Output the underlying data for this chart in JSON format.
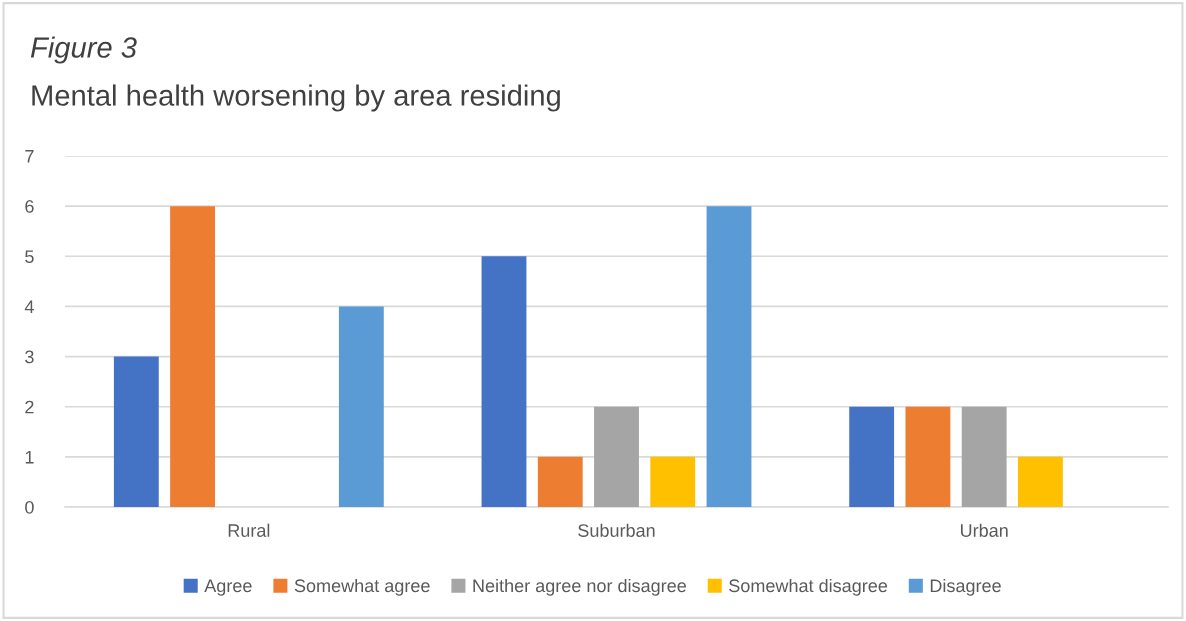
{
  "chart_data": {
    "type": "bar",
    "title": "Figure 3",
    "subtitle": "Mental health worsening by area residing",
    "categories": [
      "Rural",
      "Suburban",
      "Urban"
    ],
    "series": [
      {
        "name": "Agree",
        "color": "#4472c4",
        "values": [
          3,
          5,
          2
        ]
      },
      {
        "name": "Somewhat agree",
        "color": "#ed7d31",
        "values": [
          6,
          1,
          2
        ]
      },
      {
        "name": "Neither agree nor disagree",
        "color": "#a5a5a5",
        "values": [
          0,
          2,
          2
        ]
      },
      {
        "name": "Somewhat disagree",
        "color": "#ffc000",
        "values": [
          0,
          1,
          1
        ]
      },
      {
        "name": "Disagree",
        "color": "#5b9bd5",
        "values": [
          4,
          6,
          0
        ]
      }
    ],
    "ylim": [
      0,
      7
    ],
    "yticks": [
      0,
      1,
      2,
      3,
      4,
      5,
      6,
      7
    ],
    "grid": "y",
    "legend": "bottom"
  }
}
